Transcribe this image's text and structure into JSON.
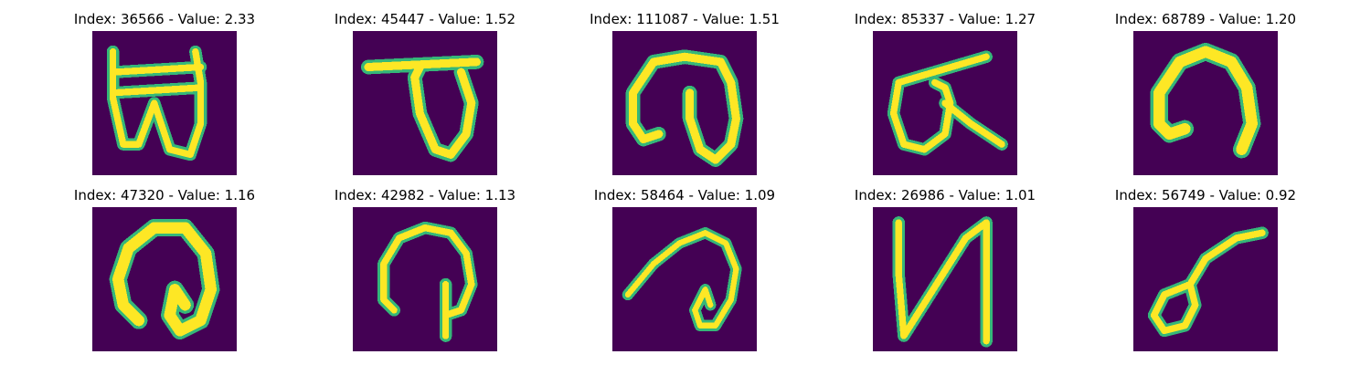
{
  "figure": {
    "panels": [
      {
        "id": 1,
        "title": "Index: 36566 - Value: 2.33",
        "glyph": "b1"
      },
      {
        "id": 2,
        "title": "Index: 45447 - Value: 1.52",
        "glyph": "b2"
      },
      {
        "id": 3,
        "title": "Index: 111087 - Value: 1.51",
        "glyph": "b3"
      },
      {
        "id": 4,
        "title": "Index: 85337 - Value: 1.27",
        "glyph": "b4"
      },
      {
        "id": 5,
        "title": "Index: 68789 - Value: 1.20",
        "glyph": "b5"
      },
      {
        "id": 6,
        "title": "Index: 47320 - Value: 1.16",
        "glyph": "b6"
      },
      {
        "id": 7,
        "title": "Index: 42982 - Value: 1.13",
        "glyph": "b7"
      },
      {
        "id": 8,
        "title": "Index: 58464 - Value: 1.09",
        "glyph": "b8"
      },
      {
        "id": 9,
        "title": "Index: 26986 - Value: 1.01",
        "glyph": "b9"
      },
      {
        "id": 10,
        "title": "Index: 56749 - Value: 0.92",
        "glyph": "b10"
      }
    ],
    "colors": {
      "background": "#440154",
      "stroke_outer": "#35b779",
      "stroke_inner": "#fde725"
    }
  }
}
